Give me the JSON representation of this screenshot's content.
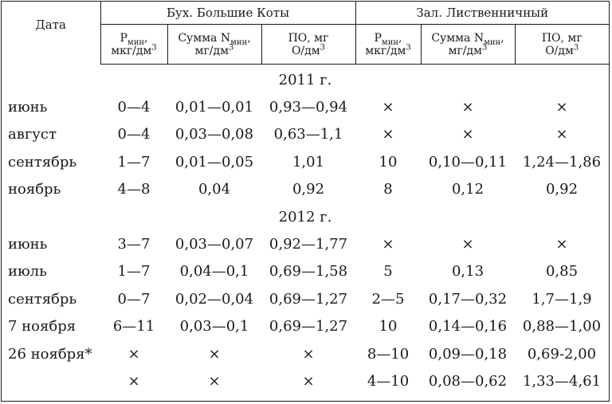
{
  "header": {
    "date_label": "Дата",
    "group1": "Бух. Большие Коты",
    "group2": "Зал. Лиственничный",
    "col_p_main": "P",
    "col_p_sub": "мин",
    "col_p_unit": "мкг/дм",
    "col_p_sup": "3",
    "col_n_main": "Сумма N",
    "col_n_sub": "мин",
    "col_n_unit": "мг/дм",
    "col_n_sup": "3",
    "col_po_main": "ПО, мг",
    "col_po_unit": "О/дм",
    "col_po_sup": "3"
  },
  "sections": [
    {
      "year": "2011 г.",
      "rows": [
        {
          "date": "июнь",
          "v": [
            "0—4",
            "0,01—0,01",
            "0,93—0,94",
            "×",
            "×",
            "×"
          ]
        },
        {
          "date": "август",
          "v": [
            "0—4",
            "0,03—0,08",
            "0,63—1,1",
            "×",
            "×",
            "×"
          ]
        },
        {
          "date": "сентябрь",
          "v": [
            "1—7",
            "0,01—0,05",
            "1,01",
            "10",
            "0,10—0,11",
            "1,24—1,86"
          ]
        },
        {
          "date": "ноябрь",
          "v": [
            "4—8",
            "0,04",
            "0,92",
            "8",
            "0,12",
            "0,92"
          ]
        }
      ]
    },
    {
      "year": "2012 г.",
      "rows": [
        {
          "date": "июнь",
          "v": [
            "3—7",
            "0,03—0,07",
            "0,92—1,77",
            "×",
            "×",
            "×"
          ]
        },
        {
          "date": "июль",
          "v": [
            "1—7",
            "0,04—0,1",
            "0,69—1,58",
            "5",
            "0,13",
            "0,85"
          ]
        },
        {
          "date": "сентябрь",
          "v": [
            "0—7",
            "0,02—0,04",
            "0,69—1,27",
            "2—5",
            "0,17—0,32",
            "1,7—1,9"
          ]
        },
        {
          "date": "7 ноября",
          "v": [
            "6—11",
            "0,03—0,1",
            "0,69—1,27",
            "10",
            "0,14—0,16",
            "0,88—1,00"
          ]
        },
        {
          "date": "26 ноября*",
          "v": [
            "×",
            "×",
            "×",
            "8—10",
            "0,09—0,18",
            "0,69-2,00"
          ]
        },
        {
          "date": "",
          "v": [
            "×",
            "×",
            "×",
            "4—10",
            "0,08—0,62",
            "1,33—4,61"
          ]
        }
      ]
    }
  ]
}
